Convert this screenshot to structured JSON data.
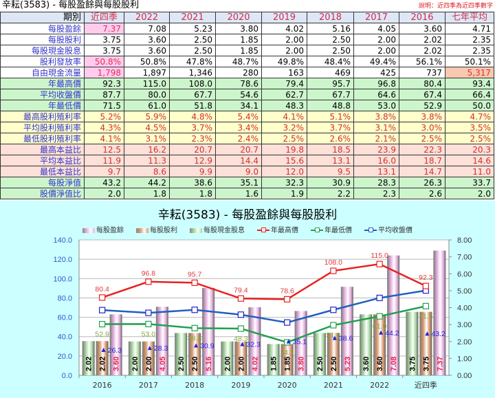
{
  "header": {
    "title": "辛耘(3583) - 每股盈餘與每股股利",
    "note": "說明：近四季為近四季數字"
  },
  "table": {
    "columns": [
      "期別",
      "近四季",
      "2022",
      "2021",
      "2020",
      "2019",
      "2018",
      "2017",
      "2016",
      "七年平均"
    ],
    "rows": [
      {
        "label": "每股盈餘",
        "style": "white",
        "values": [
          "7.37",
          "7.08",
          "5.23",
          "3.80",
          "4.02",
          "5.16",
          "4.05",
          "3.60",
          "4.71"
        ]
      },
      {
        "label": "每股股利",
        "style": "white",
        "values": [
          "3.75",
          "3.60",
          "2.50",
          "1.85",
          "2.00",
          "2.50",
          "2.00",
          "2.02",
          "2.35"
        ]
      },
      {
        "label": "每股現金股息",
        "style": "white",
        "values": [
          "3.75",
          "3.60",
          "2.50",
          "1.85",
          "2.00",
          "2.50",
          "2.00",
          "2.02",
          "2.35"
        ]
      },
      {
        "label": "股利發放率",
        "style": "white",
        "values": [
          "50.8%",
          "50.8%",
          "47.8%",
          "48.7%",
          "49.8%",
          "48.4%",
          "49.4%",
          "56.1%",
          "50.1%"
        ]
      },
      {
        "label": "自由現金流量",
        "style": "white",
        "values": [
          "1,798",
          "1,897",
          "1,346",
          "280",
          "163",
          "469",
          "425",
          "737",
          "5,317"
        ]
      },
      {
        "label": "年最高價",
        "style": "green",
        "values": [
          "92.3",
          "115.0",
          "108.0",
          "78.6",
          "79.4",
          "95.7",
          "96.8",
          "80.4",
          "93.4"
        ]
      },
      {
        "label": "平均收盤價",
        "style": "green",
        "values": [
          "87.7",
          "80.0",
          "67.7",
          "54.6",
          "62.7",
          "67.7",
          "64.6",
          "67.4",
          "66.4"
        ]
      },
      {
        "label": "年最低價",
        "style": "green",
        "values": [
          "71.5",
          "61.0",
          "51.8",
          "34.1",
          "48.3",
          "48.8",
          "53.0",
          "52.9",
          "50.0"
        ]
      },
      {
        "label": "最高股利殖利率",
        "style": "yellow",
        "values": [
          "5.2%",
          "5.9%",
          "4.8%",
          "5.4%",
          "4.1%",
          "5.1%",
          "3.8%",
          "3.8%",
          "4.7%"
        ]
      },
      {
        "label": "平均股利殖利率",
        "style": "yellow",
        "values": [
          "4.3%",
          "4.5%",
          "3.7%",
          "3.4%",
          "3.2%",
          "3.7%",
          "3.1%",
          "3.0%",
          "3.5%"
        ]
      },
      {
        "label": "最低股利殖利率",
        "style": "yellow",
        "values": [
          "4.1%",
          "3.1%",
          "2.3%",
          "2.4%",
          "2.5%",
          "2.6%",
          "2.1%",
          "2.5%",
          "2.5%"
        ]
      },
      {
        "label": "最高本益比",
        "style": "pink",
        "values": [
          "12.5",
          "16.2",
          "20.7",
          "20.7",
          "19.8",
          "18.5",
          "23.9",
          "22.3",
          "20.3"
        ]
      },
      {
        "label": "平均本益比",
        "style": "pink",
        "values": [
          "11.9",
          "11.3",
          "12.9",
          "14.4",
          "15.6",
          "13.1",
          "16.0",
          "18.7",
          "14.6"
        ]
      },
      {
        "label": "最低本益比",
        "style": "pink",
        "values": [
          "9.7",
          "8.6",
          "9.9",
          "9.0",
          "12.0",
          "9.5",
          "13.1",
          "14.7",
          "11.0"
        ]
      },
      {
        "label": "每股淨值",
        "style": "green",
        "values": [
          "43.2",
          "44.2",
          "38.6",
          "35.1",
          "32.3",
          "30.9",
          "28.3",
          "26.3",
          "33.7"
        ]
      },
      {
        "label": "股價淨值比",
        "style": "green",
        "values": [
          "2.0",
          "1.8",
          "1.8",
          "1.6",
          "1.9",
          "2.2",
          "2.3",
          "2.6",
          "2.0"
        ]
      }
    ]
  },
  "chart_data": {
    "type": "bar",
    "title": "辛耘(3583) - 每股盈餘與每股股利",
    "categories": [
      "2016",
      "2017",
      "2018",
      "2019",
      "2020",
      "2021",
      "2022",
      "近四季"
    ],
    "left_axis": {
      "min": 0,
      "max": 140,
      "ticks": [
        "0.0",
        "20.0",
        "40.0",
        "60.0",
        "80.0",
        "100.0",
        "120.0",
        "140.0"
      ]
    },
    "right_axis": {
      "min": 0,
      "max": 8,
      "ticks": [
        "0.00",
        "1.00",
        "2.00",
        "3.00",
        "4.00",
        "5.00",
        "6.00",
        "7.00",
        "8.00"
      ]
    },
    "legend_position": "top",
    "grid": true,
    "series": [
      {
        "name": "每股現金股息",
        "type": "bar",
        "axis": "right",
        "color": "#a8d8a0",
        "values": [
          2.02,
          2.0,
          2.5,
          2.0,
          1.85,
          2.5,
          3.6,
          3.75
        ]
      },
      {
        "name": "每股股利",
        "type": "bar",
        "axis": "right",
        "color": "#d89a70",
        "values": [
          2.02,
          2.0,
          2.5,
          2.0,
          1.85,
          2.5,
          3.6,
          3.75
        ]
      },
      {
        "name": "每股盈餘",
        "type": "bar",
        "axis": "right",
        "color": "#e6b0e0",
        "values": [
          3.6,
          4.05,
          5.16,
          4.02,
          3.8,
          5.23,
          7.08,
          7.37
        ]
      },
      {
        "name": "年最高價",
        "type": "line",
        "axis": "left",
        "color": "#e82020",
        "values": [
          80.4,
          96.8,
          95.7,
          79.4,
          78.6,
          108.0,
          115.0,
          92.3
        ]
      },
      {
        "name": "年最低價",
        "type": "line",
        "axis": "left",
        "color": "#20a050",
        "values": [
          52.9,
          53.0,
          48.8,
          48.3,
          34.1,
          51.8,
          61.0,
          71.5
        ]
      },
      {
        "name": "平均收盤價",
        "type": "line",
        "axis": "left",
        "color": "#2060c0",
        "values": [
          67.4,
          64.6,
          67.7,
          62.7,
          54.6,
          67.7,
          80.0,
          87.7
        ]
      },
      {
        "name": "每股淨值",
        "type": "marker",
        "axis": "left",
        "color": "#2020e0",
        "values": [
          26.3,
          28.3,
          30.9,
          32.3,
          35.1,
          38.6,
          44.2,
          43.2
        ]
      }
    ],
    "bar_labels": {
      "cash_dividend": [
        "2.02",
        "2.00",
        "2.50",
        "2.00",
        "1.85",
        "2.50",
        "3.60",
        "3.75"
      ],
      "dividend": [
        "2.02",
        "2.00",
        "2.50",
        "2.00",
        "1.85",
        "2.50",
        "3.60",
        "3.75"
      ],
      "eps": [
        "3.60",
        "4.05",
        "5.16",
        "4.02",
        "3.80",
        "5.23",
        "7.08",
        "7.37"
      ]
    },
    "line_labels": {
      "high": [
        "80.4",
        "96.8",
        "95.7",
        "79.4",
        "78.6",
        "108.0",
        "115.0",
        "92.3"
      ],
      "low": [
        "52.9",
        "53.0",
        "48.8",
        "48.3",
        "34.1",
        "51.8",
        "61.0",
        "71.5"
      ],
      "bvps": [
        "26.3",
        "28.3",
        "30.9",
        "32.3",
        "35.1",
        "38.6",
        "44.2",
        "43.2"
      ]
    }
  },
  "legend": {
    "items": [
      {
        "label": "每股盈餘",
        "kind": "bar",
        "color": "#e6b0e0"
      },
      {
        "label": "每股股利",
        "kind": "bar",
        "color": "#d89a70"
      },
      {
        "label": "每股現金股息",
        "kind": "bar",
        "color": "#a8d8a0"
      },
      {
        "label": "年最高價",
        "kind": "line",
        "color": "#e82020"
      },
      {
        "label": "年最低價",
        "kind": "line",
        "color": "#20a050"
      },
      {
        "label": "平均收盤價",
        "kind": "line",
        "color": "#2060c0"
      }
    ]
  }
}
